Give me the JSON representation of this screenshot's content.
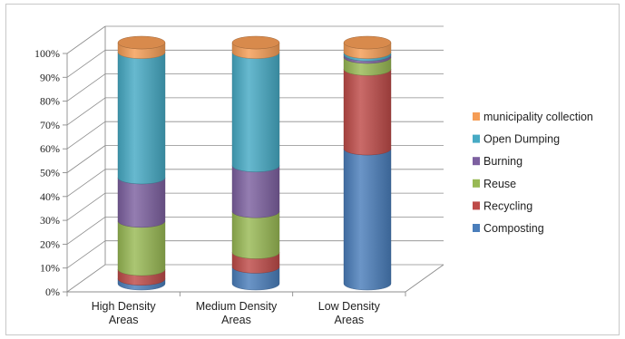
{
  "chart_data": {
    "type": "bar",
    "stacked": true,
    "percent": true,
    "style": "3d-cylinder",
    "title": "",
    "xlabel": "",
    "ylabel": "",
    "ylim": [
      0,
      100
    ],
    "yticks": [
      "0%",
      "10%",
      "20%",
      "30%",
      "40%",
      "50%",
      "60%",
      "70%",
      "80%",
      "90%",
      "100%"
    ],
    "categories": [
      [
        "High Density",
        "Areas"
      ],
      [
        "Medium Density",
        "Areas"
      ],
      [
        "Low Density",
        "Areas"
      ]
    ],
    "legend_position": "right",
    "series": [
      {
        "name": "Composting",
        "color": "#4a7ebb",
        "values": [
          2,
          7,
          56
        ]
      },
      {
        "name": "Recycling",
        "color": "#be4b48",
        "values": [
          4,
          6,
          33
        ]
      },
      {
        "name": "Reuse",
        "color": "#98b954",
        "values": [
          20,
          17,
          5
        ]
      },
      {
        "name": "Burning",
        "color": "#7d60a0",
        "values": [
          18,
          19,
          1
        ]
      },
      {
        "name": "Open Dumping",
        "color": "#46aac4",
        "values": [
          52,
          47,
          1
        ]
      },
      {
        "name": "municipality collection",
        "color": "#f59d56",
        "values": [
          4,
          4,
          4
        ]
      }
    ]
  }
}
